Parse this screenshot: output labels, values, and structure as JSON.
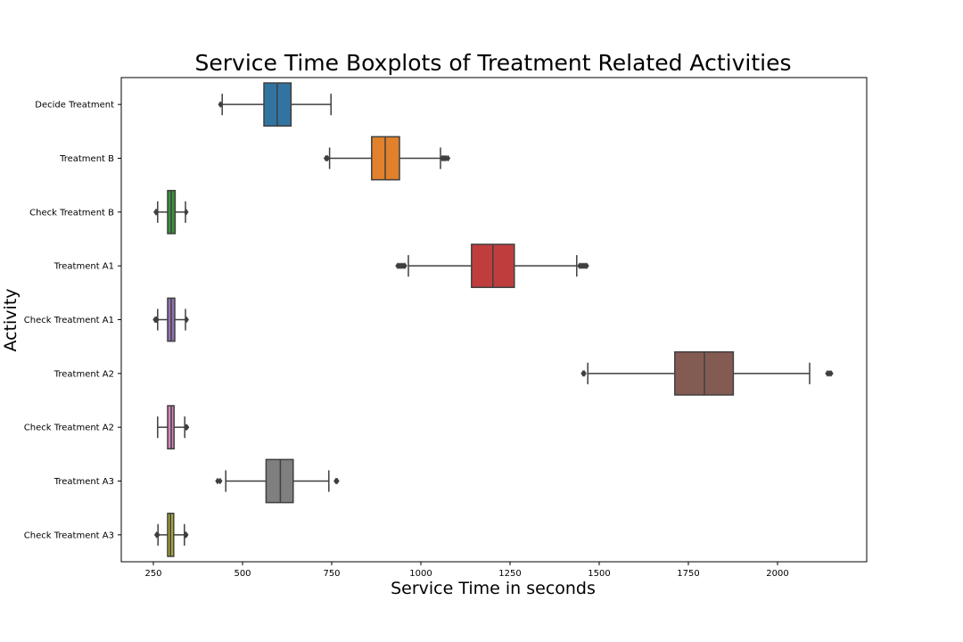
{
  "chart_data": {
    "type": "boxplot",
    "orientation": "horizontal",
    "title": "Service Time Boxplots of Treatment Related Activities",
    "xlabel": "Service Time in seconds",
    "ylabel": "Activity",
    "xlim": [
      160,
      2250
    ],
    "xticks": [
      250,
      500,
      750,
      1000,
      1250,
      1500,
      1750,
      2000
    ],
    "grid": false,
    "legend": "none",
    "categories": [
      {
        "name": "Decide Treatment",
        "color": "#3274a1",
        "whisker_low": 443,
        "q1": 560,
        "median": 597,
        "q3": 636,
        "whisker_high": 748,
        "outliers": [
          438
        ]
      },
      {
        "name": "Treatment B",
        "color": "#e1812c",
        "whisker_low": 744,
        "q1": 862,
        "median": 900,
        "q3": 940,
        "whisker_high": 1055,
        "outliers": [
          734,
          738,
          1060,
          1065,
          1070,
          1076
        ]
      },
      {
        "name": "Check Treatment B",
        "color": "#3a923a",
        "whisker_low": 262,
        "q1": 290,
        "median": 300,
        "q3": 311,
        "whisker_high": 340,
        "outliers": [
          257,
          259,
          342
        ]
      },
      {
        "name": "Treatment A1",
        "color": "#c03d3e",
        "whisker_low": 965,
        "q1": 1142,
        "median": 1202,
        "q3": 1262,
        "whisker_high": 1437,
        "outliers": [
          935,
          940,
          945,
          950,
          955,
          1445,
          1450,
          1455,
          1460,
          1465
        ]
      },
      {
        "name": "Check Treatment A1",
        "color": "#9372b2",
        "whisker_low": 262,
        "q1": 290,
        "median": 300,
        "q3": 310,
        "whisker_high": 340,
        "outliers": [
          255,
          258,
          260,
          343
        ]
      },
      {
        "name": "Treatment A2",
        "color": "#845b53",
        "whisker_low": 1468,
        "q1": 1712,
        "median": 1795,
        "q3": 1876,
        "whisker_high": 2090,
        "outliers": [
          1455,
          1458,
          2140,
          2145,
          2150
        ]
      },
      {
        "name": "Check Treatment A2",
        "color": "#d684bd",
        "whisker_low": 262,
        "q1": 290,
        "median": 300,
        "q3": 308,
        "whisker_high": 338,
        "outliers": [
          342,
          344
        ]
      },
      {
        "name": "Treatment A3",
        "color": "#7f7f7f",
        "whisker_low": 453,
        "q1": 566,
        "median": 606,
        "q3": 642,
        "whisker_high": 742,
        "outliers": [
          430,
          437,
          762,
          765
        ]
      },
      {
        "name": "Check Treatment A3",
        "color": "#a9aa35",
        "whisker_low": 263,
        "q1": 290,
        "median": 298,
        "q3": 307,
        "whisker_high": 337,
        "outliers": [
          259,
          262,
          340,
          342
        ]
      }
    ]
  }
}
